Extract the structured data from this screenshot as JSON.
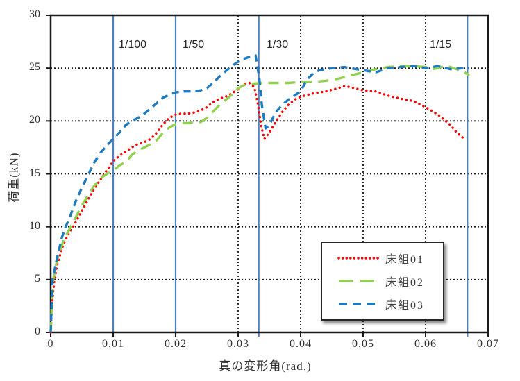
{
  "chart_data": {
    "type": "line",
    "title": "",
    "xlabel": "真の変形角(rad.)",
    "ylabel": "荷重(kN)",
    "xlim": [
      0,
      0.07
    ],
    "ylim": [
      0,
      30
    ],
    "grid": "black dotted gridlines, both directions",
    "legend_position": "inside lower right, boxed with shadow",
    "xticks": {
      "values": [
        0,
        0.01,
        0.02,
        0.03,
        0.04,
        0.05,
        0.06,
        0.07
      ],
      "labels": [
        "0",
        "0.01",
        "0.02",
        "0.03",
        "0.04",
        "0.05",
        "0.06",
        "0.07"
      ]
    },
    "yticks": {
      "values": [
        0,
        5,
        10,
        15,
        20,
        25,
        30
      ],
      "labels": [
        "0",
        "5",
        "10",
        "15",
        "20",
        "25",
        "30"
      ]
    },
    "reference_lines": [
      {
        "label": "1/100",
        "x": 0.01,
        "color": "#4F81BD"
      },
      {
        "label": "1/50",
        "x": 0.02,
        "color": "#4F81BD"
      },
      {
        "label": "1/30",
        "x": 0.0333,
        "color": "#4F81BD"
      },
      {
        "label": "1/15",
        "x": 0.0667,
        "color": "#4F81BD"
      }
    ],
    "series": [
      {
        "name": "床組01",
        "color": "#FF0000",
        "style": "dotted",
        "points": [
          [
            0,
            0
          ],
          [
            0.0002,
            2.5
          ],
          [
            0.0006,
            5
          ],
          [
            0.001,
            6.3
          ],
          [
            0.002,
            8.3
          ],
          [
            0.003,
            9.5
          ],
          [
            0.0036,
            10
          ],
          [
            0.005,
            11.5
          ],
          [
            0.006,
            12.6
          ],
          [
            0.007,
            13.6
          ],
          [
            0.0086,
            15
          ],
          [
            0.01,
            16.2
          ],
          [
            0.011,
            16.7
          ],
          [
            0.012,
            17.1
          ],
          [
            0.0135,
            17.7
          ],
          [
            0.015,
            18
          ],
          [
            0.016,
            18.3
          ],
          [
            0.017,
            18.9
          ],
          [
            0.018,
            19.7
          ],
          [
            0.019,
            20.3
          ],
          [
            0.02,
            20.6
          ],
          [
            0.021,
            20.7
          ],
          [
            0.022,
            20.7
          ],
          [
            0.023,
            20.8
          ],
          [
            0.024,
            21
          ],
          [
            0.025,
            21.3
          ],
          [
            0.026,
            21.8
          ],
          [
            0.027,
            22.1
          ],
          [
            0.028,
            22.3
          ],
          [
            0.029,
            22.6
          ],
          [
            0.03,
            23
          ],
          [
            0.031,
            23.5
          ],
          [
            0.0318,
            23.6
          ],
          [
            0.0326,
            23.2
          ],
          [
            0.0332,
            21.5
          ],
          [
            0.0337,
            19.5
          ],
          [
            0.0342,
            18.3
          ],
          [
            0.035,
            18.9
          ],
          [
            0.036,
            19.9
          ],
          [
            0.037,
            20.8
          ],
          [
            0.038,
            21.5
          ],
          [
            0.039,
            22
          ],
          [
            0.04,
            22.3
          ],
          [
            0.042,
            22.6
          ],
          [
            0.044,
            22.8
          ],
          [
            0.046,
            23.1
          ],
          [
            0.047,
            23.3
          ],
          [
            0.048,
            23.2
          ],
          [
            0.05,
            22.9
          ],
          [
            0.052,
            22.8
          ],
          [
            0.054,
            22.4
          ],
          [
            0.056,
            22.1
          ],
          [
            0.058,
            21.9
          ],
          [
            0.06,
            21.3
          ],
          [
            0.062,
            20.6
          ],
          [
            0.064,
            19.6
          ],
          [
            0.065,
            18.9
          ],
          [
            0.066,
            18.4
          ]
        ]
      },
      {
        "name": "床組02",
        "color": "#92D050",
        "style": "long-dash",
        "points": [
          [
            0,
            0
          ],
          [
            0.0002,
            3
          ],
          [
            0.0004,
            5
          ],
          [
            0.001,
            6.8
          ],
          [
            0.002,
            8.6
          ],
          [
            0.0032,
            10
          ],
          [
            0.004,
            10.9
          ],
          [
            0.005,
            12
          ],
          [
            0.006,
            13
          ],
          [
            0.007,
            13.9
          ],
          [
            0.008,
            14.6
          ],
          [
            0.009,
            15
          ],
          [
            0.01,
            15.3
          ],
          [
            0.011,
            15.8
          ],
          [
            0.012,
            16.1
          ],
          [
            0.013,
            16.8
          ],
          [
            0.014,
            17.2
          ],
          [
            0.015,
            17.5
          ],
          [
            0.016,
            17.8
          ],
          [
            0.017,
            18.2
          ],
          [
            0.018,
            18.9
          ],
          [
            0.019,
            19.4
          ],
          [
            0.02,
            19.7
          ],
          [
            0.021,
            19.8
          ],
          [
            0.022,
            19.8
          ],
          [
            0.023,
            19.9
          ],
          [
            0.024,
            19.9
          ],
          [
            0.025,
            20.3
          ],
          [
            0.026,
            20.9
          ],
          [
            0.027,
            21.5
          ],
          [
            0.028,
            22
          ],
          [
            0.029,
            22.5
          ],
          [
            0.03,
            23.1
          ],
          [
            0.031,
            23.4
          ],
          [
            0.032,
            23.5
          ],
          [
            0.034,
            23.6
          ],
          [
            0.036,
            23.6
          ],
          [
            0.038,
            23.6
          ],
          [
            0.04,
            23.7
          ],
          [
            0.042,
            23.7
          ],
          [
            0.044,
            23.8
          ],
          [
            0.046,
            24
          ],
          [
            0.048,
            24.3
          ],
          [
            0.05,
            24.6
          ],
          [
            0.052,
            24.9
          ],
          [
            0.054,
            25.1
          ],
          [
            0.056,
            25.2
          ],
          [
            0.058,
            25.2
          ],
          [
            0.06,
            25.1
          ],
          [
            0.061,
            24.9
          ],
          [
            0.062,
            25
          ],
          [
            0.063,
            25.2
          ],
          [
            0.064,
            25.1
          ],
          [
            0.065,
            24.9
          ],
          [
            0.066,
            24.7
          ],
          [
            0.067,
            24.3
          ]
        ]
      },
      {
        "name": "床組03",
        "color": "#1F7BC0",
        "style": "dash",
        "points": [
          [
            0,
            0
          ],
          [
            0.0003,
            5
          ],
          [
            0.001,
            7
          ],
          [
            0.0018,
            9
          ],
          [
            0.0024,
            10
          ],
          [
            0.003,
            10.8
          ],
          [
            0.004,
            12.4
          ],
          [
            0.005,
            13.7
          ],
          [
            0.006,
            14.9
          ],
          [
            0.007,
            16.1
          ],
          [
            0.008,
            17
          ],
          [
            0.009,
            17.7
          ],
          [
            0.01,
            18.3
          ],
          [
            0.011,
            18.9
          ],
          [
            0.012,
            19.6
          ],
          [
            0.013,
            20
          ],
          [
            0.014,
            20.3
          ],
          [
            0.015,
            20.7
          ],
          [
            0.016,
            21.2
          ],
          [
            0.017,
            21.7
          ],
          [
            0.018,
            22.2
          ],
          [
            0.019,
            22.5
          ],
          [
            0.02,
            22.7
          ],
          [
            0.021,
            22.8
          ],
          [
            0.022,
            22.8
          ],
          [
            0.023,
            22.8
          ],
          [
            0.024,
            22.9
          ],
          [
            0.025,
            23.1
          ],
          [
            0.026,
            23.6
          ],
          [
            0.027,
            24.2
          ],
          [
            0.028,
            24.7
          ],
          [
            0.029,
            25.2
          ],
          [
            0.03,
            25.6
          ],
          [
            0.031,
            25.9
          ],
          [
            0.032,
            26.1
          ],
          [
            0.0328,
            26.2
          ],
          [
            0.0334,
            24
          ],
          [
            0.0338,
            21.5
          ],
          [
            0.0344,
            19.3
          ],
          [
            0.035,
            19.6
          ],
          [
            0.036,
            20.8
          ],
          [
            0.037,
            21.5
          ],
          [
            0.038,
            22
          ],
          [
            0.039,
            22.4
          ],
          [
            0.04,
            22.8
          ],
          [
            0.041,
            23.9
          ],
          [
            0.042,
            24.5
          ],
          [
            0.043,
            24.8
          ],
          [
            0.045,
            25
          ],
          [
            0.047,
            25.1
          ],
          [
            0.049,
            24.9
          ],
          [
            0.051,
            24.7
          ],
          [
            0.052,
            24.6
          ],
          [
            0.054,
            25
          ],
          [
            0.056,
            25.1
          ],
          [
            0.058,
            25.2
          ],
          [
            0.06,
            25
          ],
          [
            0.062,
            25.2
          ],
          [
            0.064,
            24.9
          ],
          [
            0.066,
            25
          ],
          [
            0.067,
            25
          ]
        ]
      }
    ],
    "colors": {
      "frame": "#1A1A1A",
      "gridline": "#1A1A1A",
      "reference_line": "#4F81BD",
      "tick_text": "#303030"
    }
  }
}
